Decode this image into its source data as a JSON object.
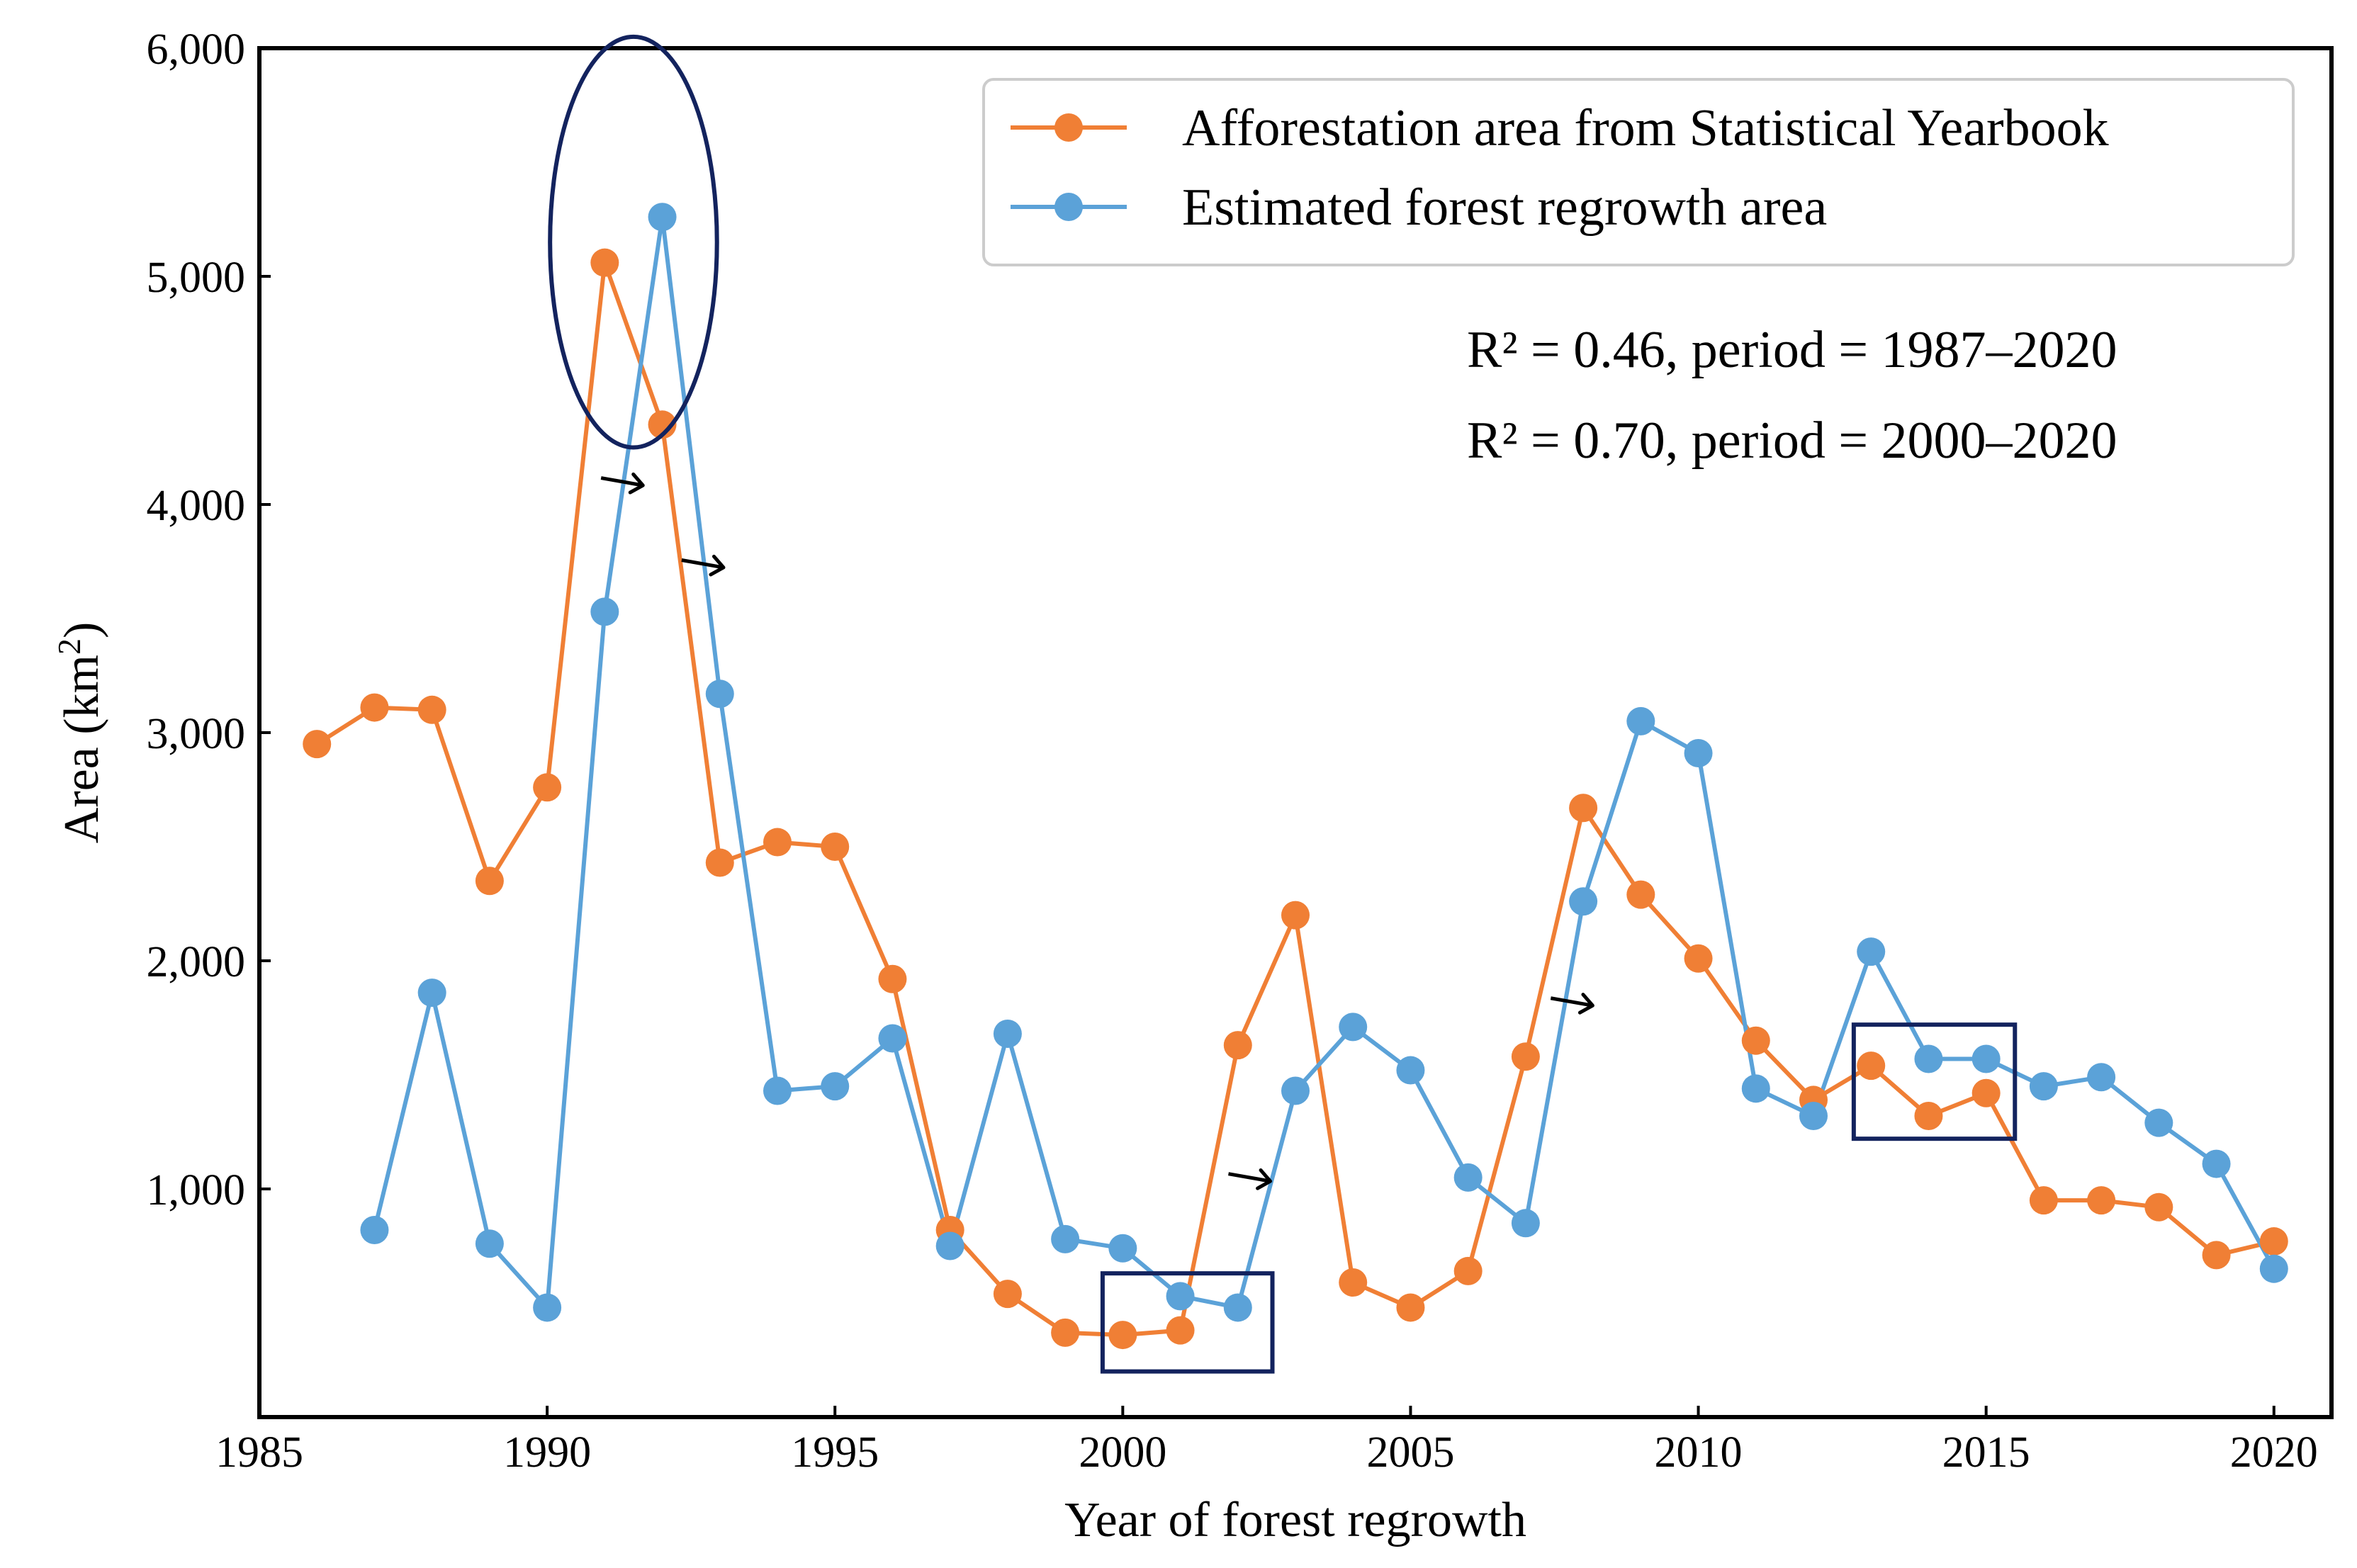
{
  "chart_data": {
    "type": "line",
    "title": "",
    "xlabel": "Year of forest regrowth",
    "ylabel": "Area (km",
    "ylabel_superscript": "2",
    "ylabel_close": ")",
    "xlim": [
      1985,
      2021
    ],
    "ylim": [
      0,
      6000
    ],
    "xticks": [
      1985,
      1990,
      1995,
      2000,
      2005,
      2010,
      2015,
      2020
    ],
    "xtick_labels": [
      "1985",
      "1990",
      "1995",
      "2000",
      "2005",
      "2010",
      "2015",
      "2020"
    ],
    "yticks": [
      1000,
      2000,
      3000,
      4000,
      5000,
      6000
    ],
    "ytick_labels": [
      "1,000",
      "2,000",
      "3,000",
      "4,000",
      "5,000",
      "6,000"
    ],
    "grid": false,
    "legend_position": "top-right",
    "series": [
      {
        "name": "Afforestation area from Statistical Yearbook",
        "color": "#f07f35",
        "x": [
          1986,
          1987,
          1988,
          1989,
          1990,
          1991,
          1992,
          1993,
          1994,
          1995,
          1996,
          1997,
          1998,
          1999,
          2000,
          2001,
          2002,
          2003,
          2004,
          2005,
          2006,
          2007,
          2008,
          2009,
          2010,
          2011,
          2012,
          2013,
          2014,
          2015,
          2016,
          2017,
          2018,
          2019,
          2020
        ],
        "values": [
          2950,
          3110,
          3100,
          2350,
          2760,
          5060,
          4350,
          2430,
          2520,
          2500,
          1920,
          820,
          540,
          370,
          360,
          380,
          1630,
          2200,
          590,
          480,
          640,
          1580,
          2670,
          2290,
          2010,
          1650,
          1390,
          1540,
          1320,
          1420,
          950,
          950,
          920,
          710,
          770
        ]
      },
      {
        "name": "Estimated forest regrowth area",
        "color": "#5ba2d8",
        "x": [
          1987,
          1988,
          1989,
          1990,
          1991,
          1992,
          1993,
          1994,
          1995,
          1996,
          1997,
          1998,
          1999,
          2000,
          2001,
          2002,
          2003,
          2004,
          2005,
          2006,
          2007,
          2008,
          2009,
          2010,
          2011,
          2012,
          2013,
          2014,
          2015,
          2016,
          2017,
          2018,
          2019,
          2020
        ],
        "values": [
          820,
          1860,
          760,
          480,
          3530,
          5260,
          3170,
          1430,
          1450,
          1660,
          750,
          1680,
          780,
          740,
          530,
          480,
          1430,
          1710,
          1520,
          1050,
          850,
          2260,
          3050,
          2910,
          1440,
          1320,
          2040,
          1570,
          1570,
          1450,
          1490,
          1290,
          1110,
          650
        ]
      }
    ],
    "annotations": [
      "R² = 0.46, period = 1987–2020",
      "R² = 0.70, period = 2000–2020"
    ],
    "highlights": {
      "circle": {
        "x": 1991.5,
        "y": 5150,
        "rx_years": 1.45,
        "ry_value": 900
      },
      "boxes": [
        {
          "x0": 1999.65,
          "x1": 2002.6,
          "y0": 200,
          "y1": 630
        },
        {
          "x0": 2012.7,
          "x1": 2015.5,
          "y0": 1220,
          "y1": 1720
        }
      ],
      "arrows": [
        {
          "x": 1991.3,
          "y": 4100
        },
        {
          "x": 1992.7,
          "y": 3740
        },
        {
          "x": 2002.2,
          "y": 1050
        },
        {
          "x": 2007.8,
          "y": 1820
        }
      ],
      "highlight_color": "#13235e"
    }
  }
}
